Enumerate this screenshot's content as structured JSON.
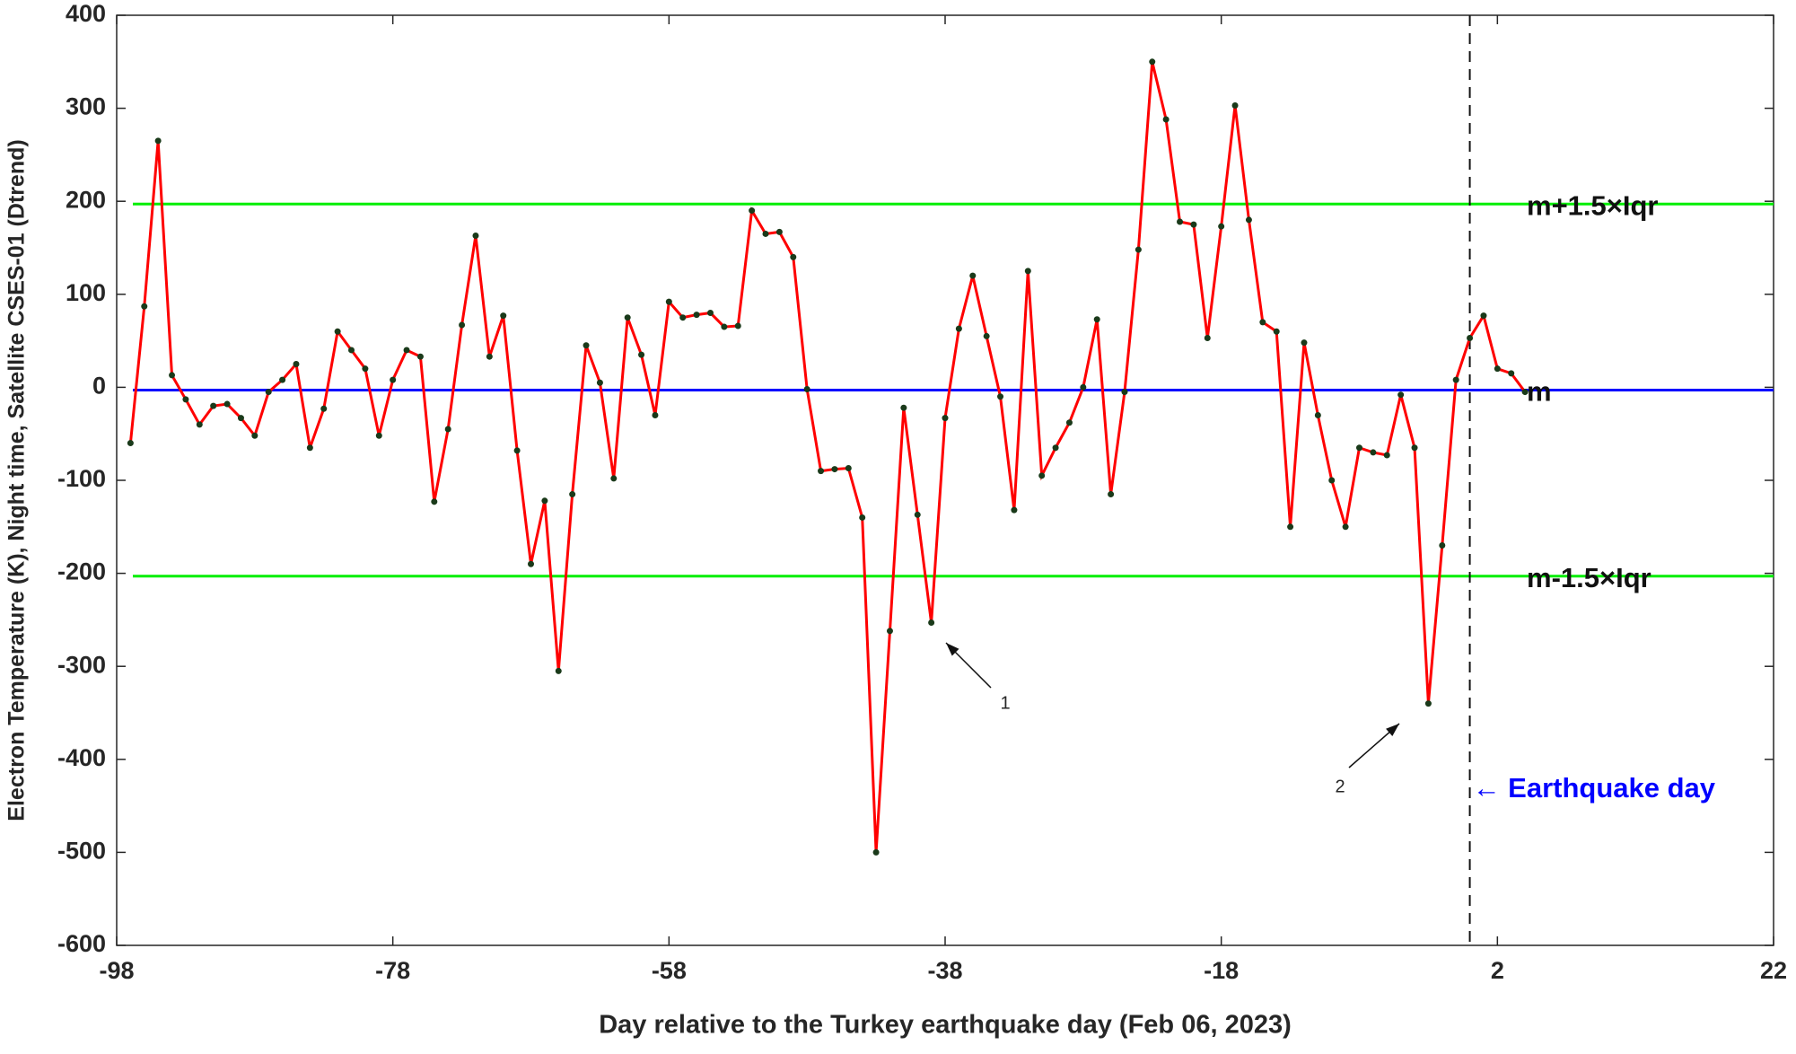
{
  "chart_data": {
    "type": "line",
    "xlabel": "Day relative to the Turkey earthquake day (Feb 06, 2023)",
    "ylabel": "Electron Temperature (K), Night time, Satellite CSES-01 (Dtrend)",
    "x": [
      -97,
      -96,
      -95,
      -94,
      -93,
      -92,
      -91,
      -90,
      -89,
      -88,
      -87,
      -86,
      -85,
      -84,
      -83,
      -82,
      -81,
      -80,
      -79,
      -78,
      -77,
      -76,
      -75,
      -74,
      -73,
      -72,
      -71,
      -70,
      -69,
      -68,
      -67,
      -66,
      -65,
      -64,
      -63,
      -62,
      -61,
      -60,
      -59,
      -58,
      -57,
      -56,
      -55,
      -54,
      -53,
      -52,
      -51,
      -50,
      -49,
      -48,
      -47,
      -46,
      -45,
      -44,
      -43,
      -42,
      -41,
      -40,
      -39,
      -38,
      -37,
      -36,
      -35,
      -34,
      -33,
      -32,
      -31,
      -30,
      -29,
      -28,
      -27,
      -26,
      -25,
      -24,
      -23,
      -22,
      -21,
      -20,
      -19,
      -18,
      -17,
      -16,
      -15,
      -14,
      -13,
      -12,
      -11,
      -10,
      -9,
      -8,
      -7,
      -6,
      -5,
      -4,
      -3,
      -2,
      -1,
      0,
      1,
      2,
      3,
      4
    ],
    "values": [
      -60,
      87,
      265,
      13,
      -13,
      -40,
      -20,
      -18,
      -33,
      -52,
      -5,
      8,
      25,
      -65,
      -23,
      60,
      40,
      20,
      -52,
      8,
      40,
      33,
      -123,
      -45,
      67,
      163,
      33,
      77,
      -68,
      -190,
      -122,
      -305,
      -115,
      45,
      5,
      -98,
      75,
      35,
      -30,
      92,
      75,
      78,
      80,
      65,
      66,
      190,
      165,
      167,
      140,
      -2,
      -90,
      -88,
      -87,
      -140,
      -500,
      -262,
      -22,
      -137,
      -253,
      -33,
      63,
      120,
      55,
      -10,
      -132,
      125,
      -95,
      -65,
      -38,
      0,
      73,
      -115,
      -5,
      148,
      350,
      288,
      178,
      175,
      53,
      173,
      303,
      180,
      70,
      60,
      -150,
      48,
      -30,
      -100,
      -150,
      -65,
      -70,
      -73,
      -8,
      -65,
      -340,
      -170,
      8,
      53,
      77,
      20,
      15,
      -5
    ],
    "color": "#ff0000",
    "xlim": [
      -98,
      22
    ],
    "xticks": [
      -98,
      -78,
      -58,
      -38,
      -18,
      2,
      22
    ],
    "ylim": [
      -600,
      400
    ],
    "yticks": [
      -600,
      -500,
      -400,
      -300,
      -200,
      -100,
      0,
      100,
      200,
      300,
      400
    ],
    "hlines": [
      {
        "value": 197,
        "label": "m+1.5×Iqr",
        "color": "#00ee00"
      },
      {
        "value": -3,
        "label": "m",
        "color": "#0000ff"
      },
      {
        "value": -203,
        "label": "m-1.5×Iqr",
        "color": "#00ee00"
      }
    ],
    "vline": {
      "value": 0,
      "label": "← Earthquake day",
      "color": "#0000ff"
    },
    "annotations": [
      "1",
      "2"
    ]
  }
}
